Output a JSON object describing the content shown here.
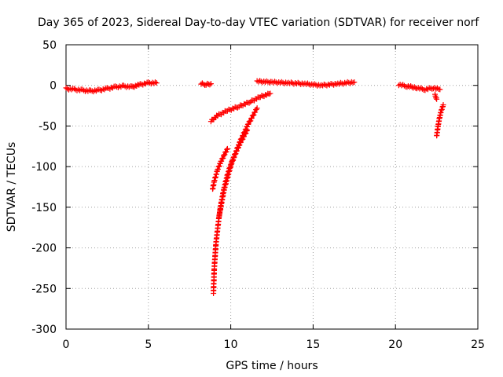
{
  "chart_data": {
    "type": "scatter",
    "title": "Day 365 of 2023, Sidereal Day-to-day VTEC variation (SDTVAR) for receiver norf",
    "xlabel": "GPS time / hours",
    "ylabel": "SDTVAR / TECUs",
    "xlim": [
      0,
      25
    ],
    "ylim": [
      -300,
      50
    ],
    "xticks": [
      0,
      5,
      10,
      15,
      20,
      25
    ],
    "yticks": [
      50,
      0,
      -50,
      -100,
      -150,
      -200,
      -250,
      -300
    ],
    "grid": true,
    "marker": "+",
    "color": "#ff0000",
    "segments": [
      {
        "x": [
          0.0,
          0.5,
          1.0,
          1.5,
          2.0,
          2.5,
          3.0,
          3.5,
          4.0,
          4.5,
          5.0,
          5.5
        ],
        "y": [
          -4,
          -5,
          -6,
          -7,
          -6,
          -4,
          -2,
          -1,
          -2,
          1,
          3,
          3
        ]
      },
      {
        "x": [
          8.2,
          8.5,
          8.8
        ],
        "y": [
          2,
          1,
          2
        ]
      },
      {
        "x": [
          11.6,
          12.5,
          13.5,
          14.5,
          15.5,
          16.5,
          17.5
        ],
        "y": [
          5,
          4,
          3,
          2,
          0,
          2,
          4
        ]
      },
      {
        "x": [
          20.2,
          20.7,
          21.3,
          21.8,
          22.3,
          22.7
        ],
        "y": [
          1,
          -1,
          -3,
          -5,
          -3,
          -5
        ]
      },
      {
        "x": [
          22.5,
          22.6,
          22.7,
          22.8,
          22.9
        ],
        "y": [
          -62,
          -48,
          -37,
          -30,
          -24
        ]
      },
      {
        "x": [
          22.4,
          22.5
        ],
        "y": [
          -12,
          -17
        ]
      },
      {
        "x": [
          8.8,
          9.2,
          9.8,
          10.5,
          11.2,
          11.8,
          12.4
        ],
        "y": [
          -44,
          -37,
          -31,
          -26,
          -20,
          -14,
          -10
        ]
      },
      {
        "x": [
          8.9,
          9.0,
          9.2,
          9.4,
          9.6,
          9.8
        ],
        "y": [
          -128,
          -118,
          -104,
          -94,
          -86,
          -78
        ]
      },
      {
        "x": [
          8.95,
          9.0,
          9.1,
          9.3,
          9.6,
          10.0,
          10.5,
          11.0,
          11.6
        ],
        "y": [
          -255,
          -225,
          -195,
          -160,
          -128,
          -99,
          -72,
          -50,
          -28
        ]
      },
      {
        "x": [
          9.3,
          9.45,
          9.6,
          9.8,
          10.1,
          10.5,
          11.0
        ],
        "y": [
          -160,
          -141,
          -126,
          -110,
          -92,
          -74,
          -55
        ]
      }
    ]
  }
}
